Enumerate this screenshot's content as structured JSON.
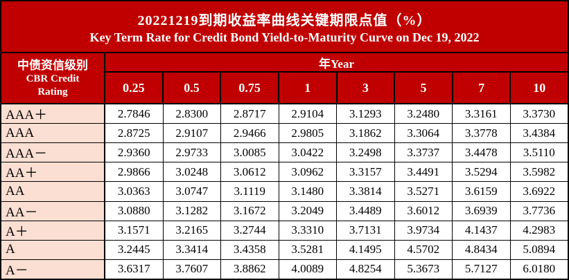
{
  "title": {
    "line1": "20221219到期收益率曲线关键期限点值（%）",
    "line2": "Key Term Rate for Credit Bond Yield-to-Maturity Curve on Dec 19, 2022"
  },
  "header": {
    "row_header_zh": "中债资信级别",
    "row_header_en": "CBR Credit Rating",
    "column_group_label": "年Year"
  },
  "colors": {
    "header_red": "#C00000",
    "rating_pink": "#FBDFD3",
    "grid_border": "#000000",
    "header_text": "#FFFFFF",
    "body_text": "#000000"
  },
  "chart_data": {
    "type": "table",
    "title": "20221219到期收益率曲线关键期限点值（%）",
    "subtitle": "Key Term Rate for Credit Bond Yield-to-Maturity Curve on Dec 19, 2022",
    "unit": "%",
    "row_header": "中债资信级别 CBR Credit Rating",
    "column_group_label": "年Year",
    "columns": [
      "0.25",
      "0.5",
      "0.75",
      "1",
      "3",
      "5",
      "7",
      "10"
    ],
    "rows": [
      {
        "rating": "AAA＋",
        "values": [
          "2.7846",
          "2.8300",
          "2.8717",
          "2.9104",
          "3.1293",
          "3.2480",
          "3.3161",
          "3.3730"
        ]
      },
      {
        "rating": "AAA",
        "values": [
          "2.8725",
          "2.9107",
          "2.9466",
          "2.9805",
          "3.1862",
          "3.3064",
          "3.3778",
          "3.4384"
        ]
      },
      {
        "rating": "AAA－",
        "values": [
          "2.9360",
          "2.9733",
          "3.0085",
          "3.0422",
          "3.2498",
          "3.3737",
          "3.4478",
          "3.5110"
        ]
      },
      {
        "rating": "AA＋",
        "values": [
          "2.9866",
          "3.0248",
          "3.0612",
          "3.0962",
          "3.3157",
          "3.4491",
          "3.5294",
          "3.5982"
        ]
      },
      {
        "rating": "AA",
        "values": [
          "3.0363",
          "3.0747",
          "3.1119",
          "3.1480",
          "3.3814",
          "3.5271",
          "3.6159",
          "3.6922"
        ]
      },
      {
        "rating": "AA－",
        "values": [
          "3.0880",
          "3.1282",
          "3.1672",
          "3.2049",
          "3.4489",
          "3.6012",
          "3.6939",
          "3.7736"
        ]
      },
      {
        "rating": "A＋",
        "values": [
          "3.1571",
          "3.2165",
          "3.2744",
          "3.3310",
          "3.7131",
          "3.9734",
          "4.1437",
          "4.2983"
        ]
      },
      {
        "rating": "A",
        "values": [
          "3.2445",
          "3.3414",
          "3.4358",
          "3.5281",
          "4.1495",
          "4.5702",
          "4.8434",
          "5.0894"
        ]
      },
      {
        "rating": "A－",
        "values": [
          "3.6317",
          "3.7607",
          "3.8862",
          "4.0089",
          "4.8254",
          "5.3673",
          "5.7127",
          "6.0180"
        ]
      }
    ]
  }
}
